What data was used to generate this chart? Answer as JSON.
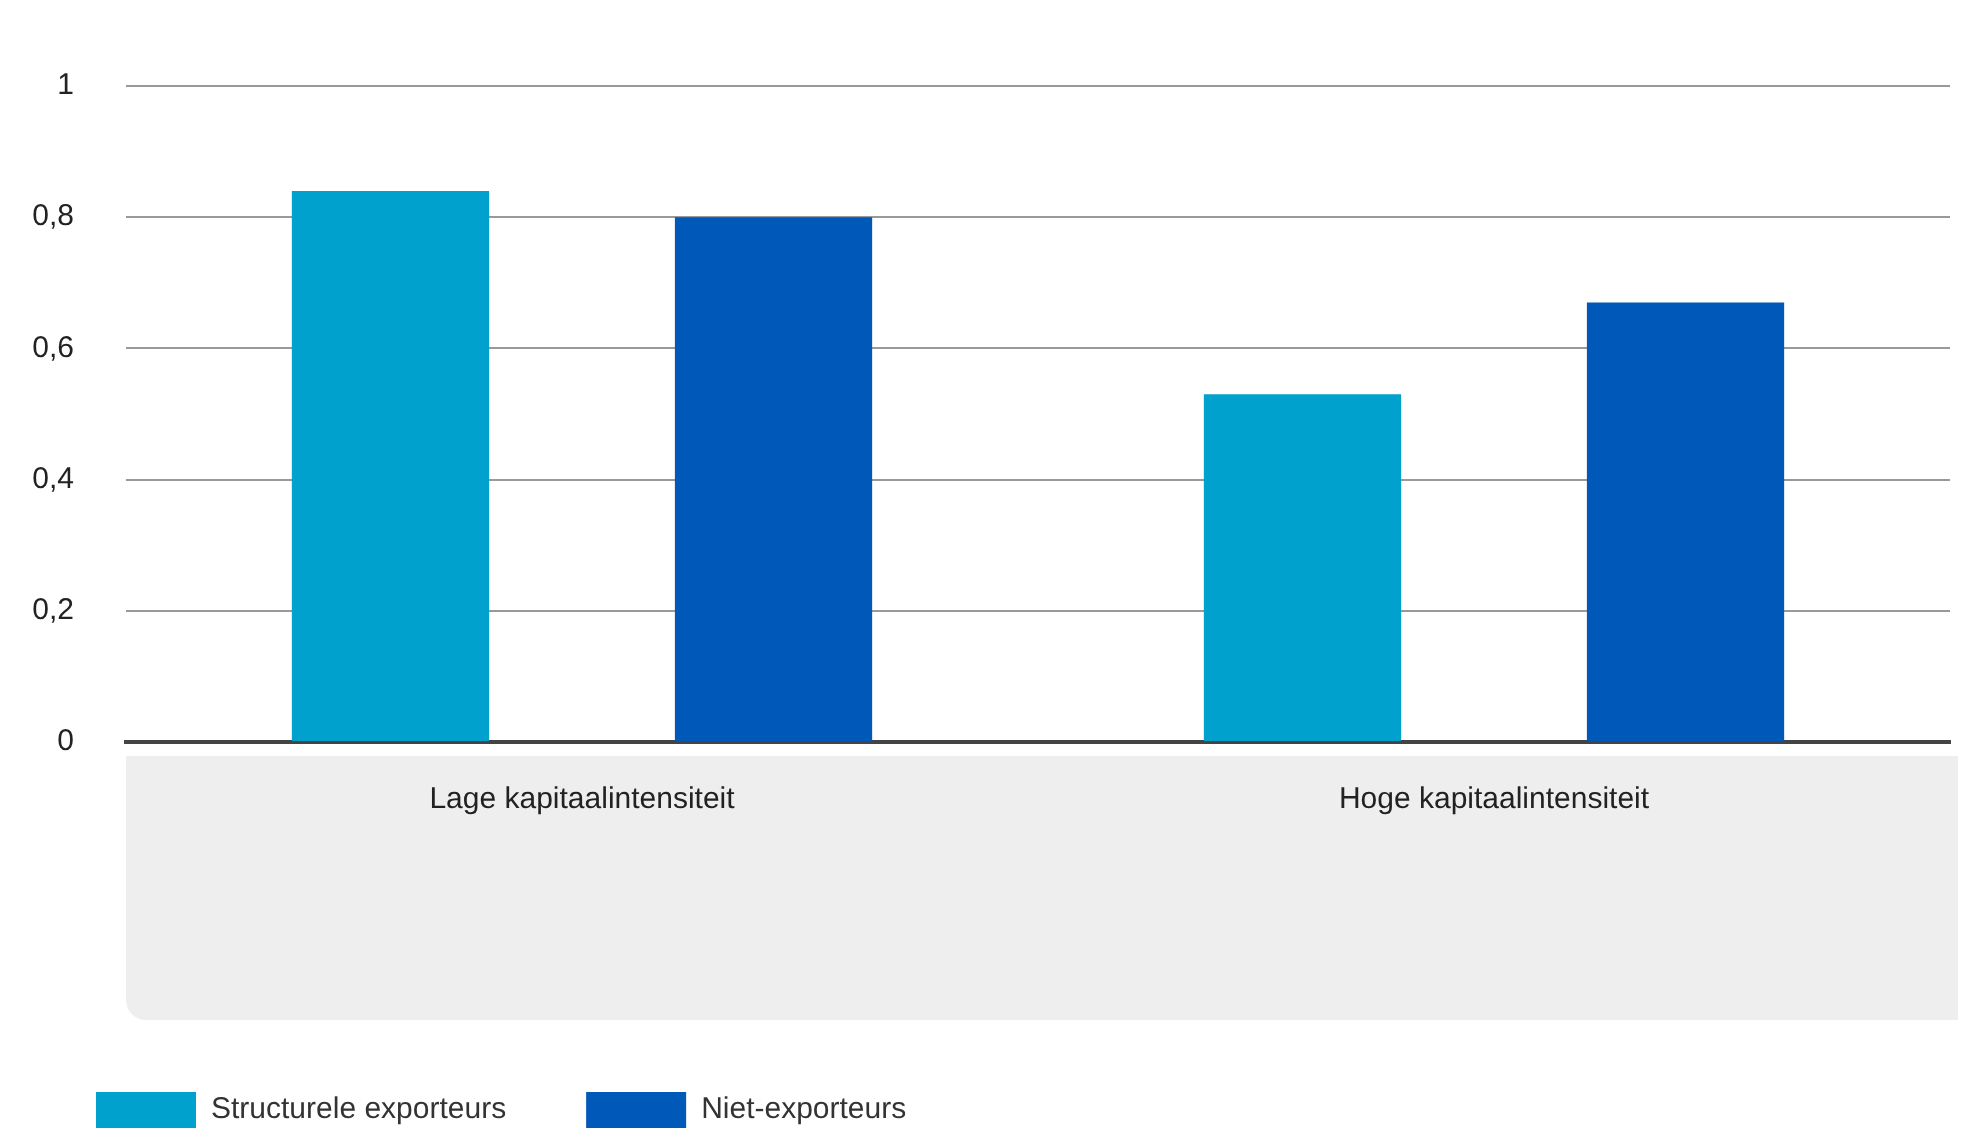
{
  "chart_data": {
    "type": "bar",
    "categories": [
      "Lage kapitaalintensiteit",
      "Hoge kapitaalintensiteit"
    ],
    "series": [
      {
        "name": "Structurele exporteurs",
        "color": "#00a1cd",
        "values": [
          0.84,
          0.53
        ]
      },
      {
        "name": "Niet-exporteurs",
        "color": "#0058b8",
        "values": [
          0.8,
          0.67
        ]
      }
    ],
    "ylim": [
      0,
      1
    ],
    "yticks": [
      0,
      {
        "value": 0.2,
        "label": "0,2"
      },
      {
        "value": 0.4,
        "label": "0,4"
      },
      {
        "value": 0.6,
        "label": "0,6"
      },
      {
        "value": 0.8,
        "label": "0,8"
      },
      1
    ],
    "grid": "y",
    "legend": "bottom left"
  }
}
